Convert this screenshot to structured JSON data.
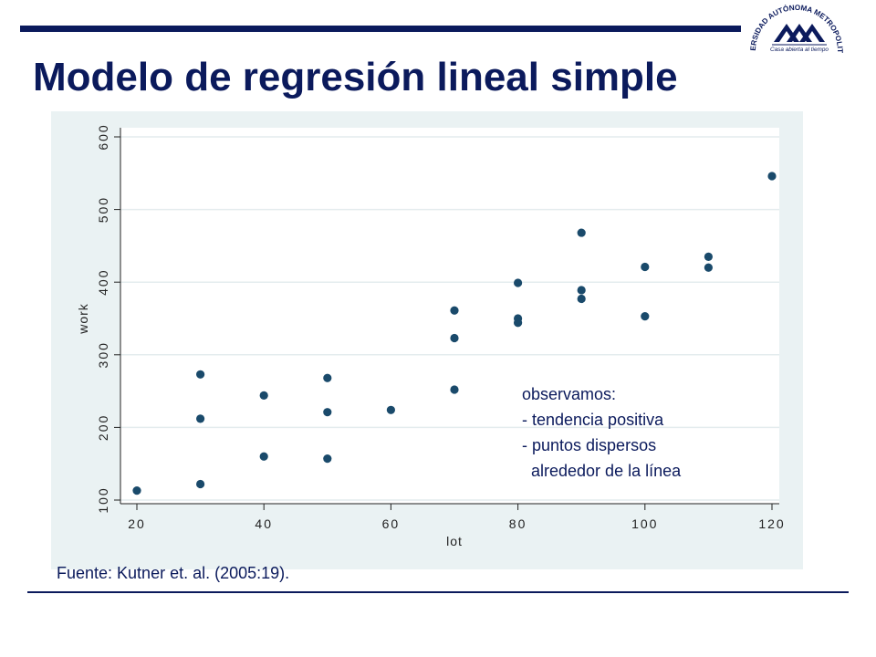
{
  "slide": {
    "title": "Modelo de regresión lineal simple",
    "source": "Fuente: Kutner et. al. (2005:19).",
    "logo": {
      "arc_text": "UNIVERSIDAD AUTÓNOMA METROPOLITANA",
      "tagline": "Casa abierta al tiempo"
    },
    "annotation": [
      "observamos:",
      "- tendencia positiva",
      "- puntos dispersos",
      "  alrededor de la línea"
    ],
    "colors": {
      "primary": "#0b1a5c",
      "panel_bg": "#eaf2f3",
      "plot_bg": "#ffffff",
      "marker": "#1a4a6b",
      "grid": "#e4ecee"
    }
  },
  "chart_data": {
    "type": "scatter",
    "title": "",
    "xlabel": "lot",
    "ylabel": "work",
    "xlim": [
      20,
      120
    ],
    "ylim": [
      100,
      600
    ],
    "xticks": [
      20,
      40,
      60,
      80,
      100,
      120
    ],
    "yticks": [
      100,
      200,
      300,
      400,
      500,
      600
    ],
    "grid": true,
    "legend": "none",
    "points": [
      {
        "x": 20,
        "y": 113
      },
      {
        "x": 30,
        "y": 273
      },
      {
        "x": 30,
        "y": 212
      },
      {
        "x": 30,
        "y": 122
      },
      {
        "x": 40,
        "y": 244
      },
      {
        "x": 40,
        "y": 160
      },
      {
        "x": 50,
        "y": 268
      },
      {
        "x": 50,
        "y": 221
      },
      {
        "x": 50,
        "y": 157
      },
      {
        "x": 60,
        "y": 224
      },
      {
        "x": 70,
        "y": 361
      },
      {
        "x": 70,
        "y": 323
      },
      {
        "x": 70,
        "y": 252
      },
      {
        "x": 80,
        "y": 399
      },
      {
        "x": 80,
        "y": 350
      },
      {
        "x": 80,
        "y": 344
      },
      {
        "x": 90,
        "y": 468
      },
      {
        "x": 90,
        "y": 389
      },
      {
        "x": 90,
        "y": 377
      },
      {
        "x": 100,
        "y": 421
      },
      {
        "x": 100,
        "y": 353
      },
      {
        "x": 110,
        "y": 435
      },
      {
        "x": 110,
        "y": 420
      },
      {
        "x": 120,
        "y": 546
      }
    ]
  }
}
